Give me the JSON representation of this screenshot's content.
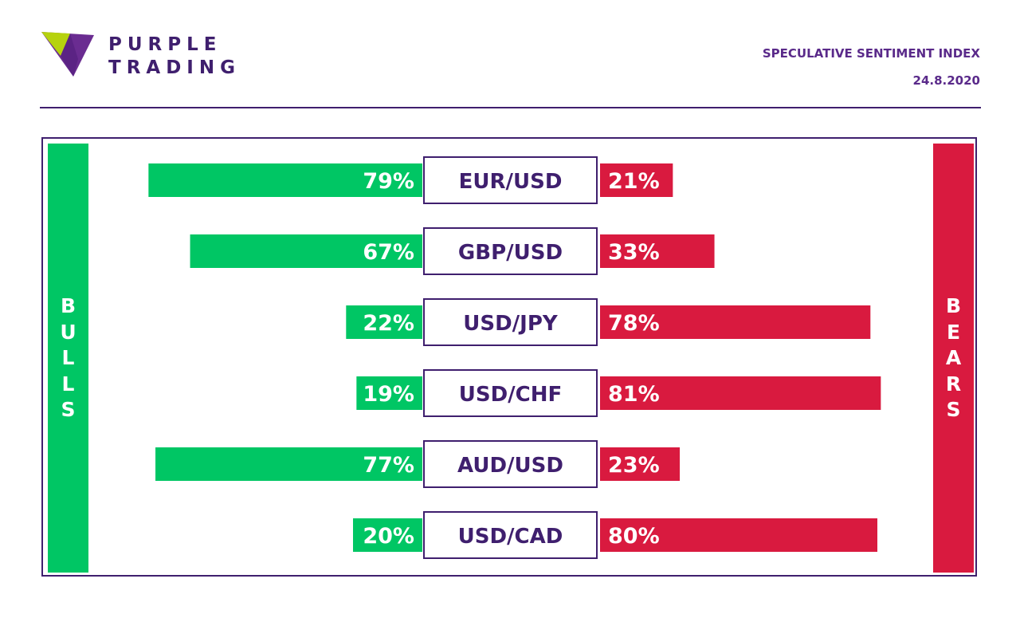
{
  "brand": {
    "line1": "PURPLE",
    "line2": "TRADING"
  },
  "header": {
    "title": "SPECULATIVE SENTIMENT INDEX",
    "date": "24.8.2020"
  },
  "colors": {
    "bulls": "#00c664",
    "bears": "#d91a3f",
    "purple": "#3f1f6e",
    "logo_green": "#b6d20e",
    "logo_purple": "#6a2c91"
  },
  "chart_data": {
    "type": "bar",
    "left_label": "BULLS",
    "right_label": "BEARS",
    "categories": [
      "EUR/USD",
      "GBP/USD",
      "USD/JPY",
      "USD/CHF",
      "AUD/USD",
      "USD/CAD"
    ],
    "series": [
      {
        "name": "BULLS",
        "values": [
          79,
          67,
          22,
          19,
          77,
          20
        ],
        "labels": [
          "79%",
          "67%",
          "22%",
          "19%",
          "77%",
          "20%"
        ]
      },
      {
        "name": "BEARS",
        "values": [
          21,
          33,
          78,
          81,
          23,
          80
        ],
        "labels": [
          "21%",
          "33%",
          "78%",
          "81%",
          "23%",
          "80%"
        ]
      }
    ],
    "xlim": [
      0,
      100
    ]
  }
}
